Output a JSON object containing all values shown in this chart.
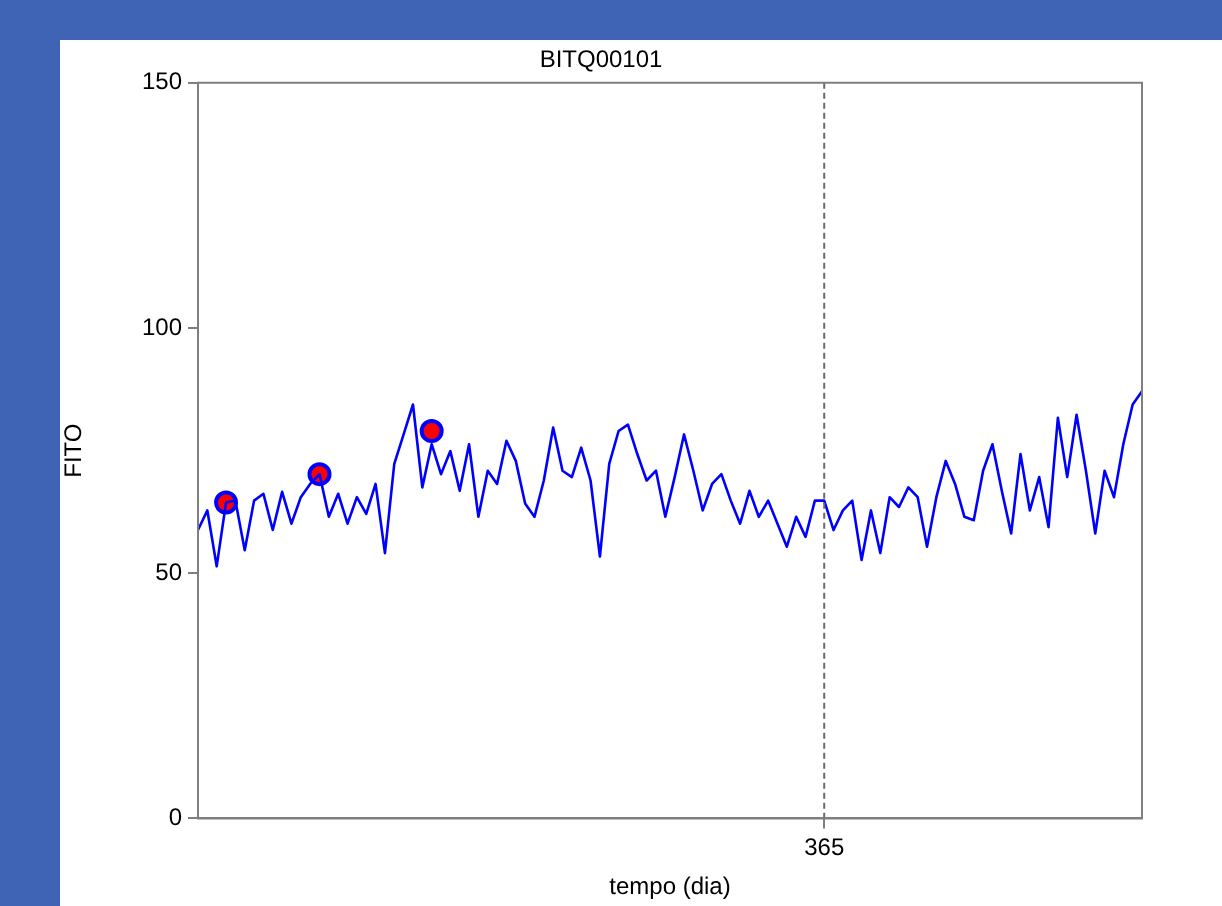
{
  "chart_data": {
    "type": "line",
    "title": "BITQ00101",
    "xlabel": "tempo (dia)",
    "ylabel": "FITO",
    "categories": [
      null,
      null,
      null,
      null,
      null,
      null,
      null,
      null,
      null,
      null,
      null,
      null,
      null,
      null,
      null,
      null,
      null,
      null,
      null,
      null,
      null,
      null,
      null,
      null,
      null,
      null,
      null,
      null,
      null,
      null,
      null,
      null,
      null,
      null,
      null,
      null,
      null,
      null,
      null,
      null,
      null,
      null,
      null,
      null,
      null,
      null,
      null,
      null,
      null,
      null,
      null,
      null,
      null,
      null,
      null,
      null,
      null,
      null,
      null,
      null,
      null,
      null,
      null,
      null,
      null,
      null,
      null,
      "365",
      null,
      null,
      null,
      null,
      null,
      null,
      null,
      null,
      null,
      null,
      null,
      null,
      null,
      null,
      null,
      null,
      null,
      null,
      null,
      null,
      null,
      null,
      null,
      null,
      null,
      null,
      null,
      null,
      null,
      null,
      null,
      null,
      null,
      null
    ],
    "ylim": [
      0,
      150
    ],
    "yticks": [
      0,
      50,
      100,
      150
    ],
    "line_style": "solid",
    "ref_lines": [
      {
        "axis": "x",
        "value": "365",
        "color": "#6a6a6a",
        "line_style": "dashed"
      }
    ],
    "series": [
      {
        "color": "#0000ff",
        "values": [
          58.8,
          62.8,
          51.4,
          64.4,
          64.8,
          54.7,
          64.8,
          66.2,
          58.8,
          66.6,
          60.1,
          65.5,
          68.2,
          70.2,
          61.5,
          66.2,
          60.1,
          65.5,
          62.1,
          68.2,
          54.1,
          72.3,
          78.3,
          84.4,
          67.5,
          76.3,
          70.2,
          74.9,
          66.8,
          76.3,
          61.5,
          70.9,
          68.2,
          77,
          72.9,
          64.2,
          61.5,
          68.9,
          79.7,
          70.9,
          69.6,
          75.6,
          68.9,
          53.4,
          72.3,
          79,
          80.3,
          74.3,
          68.9,
          70.9,
          61.5,
          69.6,
          78.3,
          70.9,
          62.8,
          68.2,
          70.2,
          64.8,
          60.1,
          66.8,
          61.5,
          64.8,
          60.1,
          55.4,
          61.5,
          57.4,
          64.8,
          64.8,
          58.8,
          62.8,
          64.8,
          52.7,
          62.8,
          54.1,
          65.5,
          63.5,
          67.5,
          65.5,
          55.4,
          65.5,
          72.9,
          68.2,
          61.5,
          60.8,
          70.9,
          76.3,
          66.8,
          58.1,
          74.3,
          62.8,
          69.6,
          59.4,
          81.7,
          69.6,
          82.3,
          70.9,
          58.1,
          70.9,
          65.5,
          76.3,
          84.4,
          87.1
        ]
      },
      {
        "type": "scatter",
        "color": "#ff0000",
        "marker": "circle",
        "values": [
          null,
          null,
          null,
          64.4,
          null,
          null,
          null,
          null,
          null,
          null,
          null,
          null,
          null,
          70.2,
          null,
          null,
          null,
          null,
          null,
          null,
          null,
          null,
          null,
          null,
          null,
          79,
          null,
          null,
          null,
          null,
          null,
          null,
          null,
          null,
          null,
          null,
          null,
          null,
          null,
          null,
          null,
          null,
          null,
          null,
          null,
          null,
          null,
          null,
          null,
          null,
          null,
          null,
          null,
          null,
          null,
          null,
          null,
          null,
          null,
          null,
          null,
          null,
          null,
          null,
          null,
          null,
          null,
          null,
          null,
          null,
          null,
          null,
          null,
          null,
          null,
          null,
          null,
          null,
          null,
          null,
          null,
          null,
          null,
          null,
          null,
          null,
          null,
          null,
          null,
          null,
          null,
          null,
          null,
          null,
          null,
          null,
          null,
          null,
          null,
          null,
          null,
          null
        ]
      }
    ]
  }
}
